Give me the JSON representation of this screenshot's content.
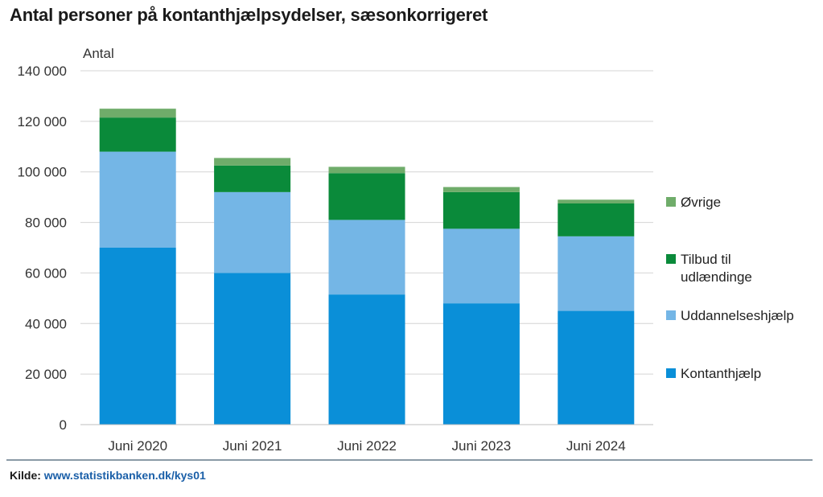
{
  "title": "Antal personer på kontanthjælpsydelser, sæsonkorrigeret",
  "source": {
    "label": "Kilde:",
    "link": "www.statistikbanken.dk/kys01"
  },
  "chart_data": {
    "type": "bar",
    "stacked": true,
    "title": "Antal personer på kontanthjælpsydelser, sæsonkorrigeret",
    "ylabel": "Antal",
    "xlabel": "",
    "categories": [
      "Juni 2020",
      "Juni 2021",
      "Juni 2022",
      "Juni 2023",
      "Juni 2024"
    ],
    "ylim": [
      0,
      140000
    ],
    "yticks": [
      0,
      20000,
      40000,
      60000,
      80000,
      100000,
      120000,
      140000
    ],
    "ytick_labels": [
      "0",
      "20 000",
      "40 000",
      "60 000",
      "80 000",
      "100 000",
      "120 000",
      "140 000"
    ],
    "grid": true,
    "legend_position": "right",
    "series": [
      {
        "name": "Kontanthjælp",
        "color": "#0a8fd8",
        "values": [
          70000,
          60000,
          51500,
          48000,
          45000
        ]
      },
      {
        "name": "Uddannelseshjælp",
        "color": "#74b6e6",
        "values": [
          38000,
          32000,
          29500,
          29500,
          29500
        ]
      },
      {
        "name": "Tilbud til udlændinge",
        "color": "#0a8a3a",
        "values": [
          13500,
          10500,
          18500,
          14500,
          13000
        ]
      },
      {
        "name": "Øvrige",
        "color": "#6fac6a",
        "values": [
          3500,
          3000,
          2500,
          2000,
          1500
        ]
      }
    ],
    "legend": [
      {
        "series": 3,
        "lines": [
          "Øvrige"
        ]
      },
      {
        "series": 2,
        "lines": [
          "Tilbud til",
          "udlændinge"
        ]
      },
      {
        "series": 1,
        "lines": [
          "Uddannelseshjælp"
        ]
      },
      {
        "series": 0,
        "lines": [
          "Kontanthjælp"
        ]
      }
    ]
  }
}
